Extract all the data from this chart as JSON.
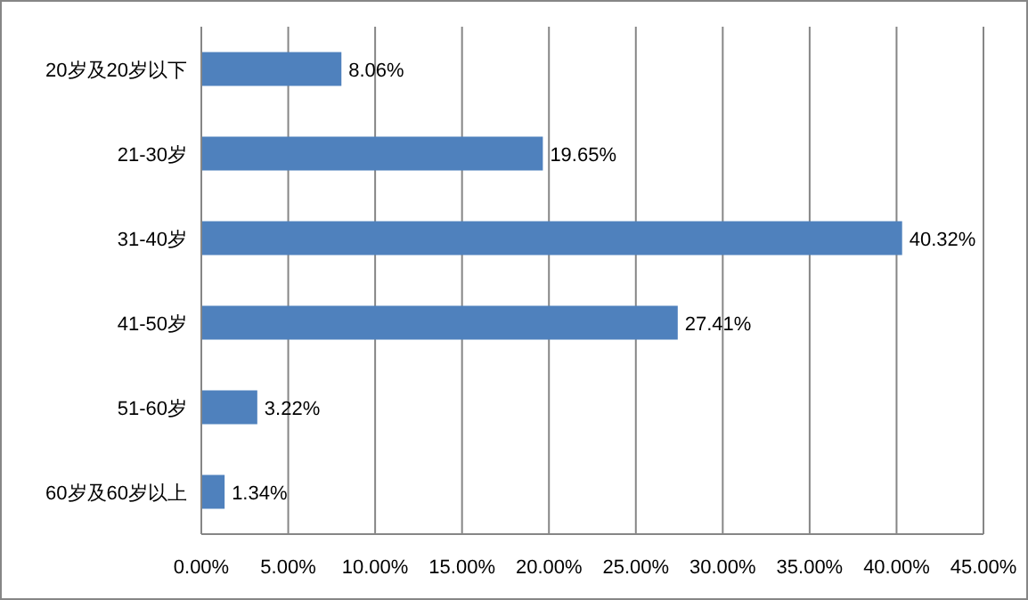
{
  "chart_data": {
    "type": "bar",
    "orientation": "horizontal",
    "categories": [
      "20岁及20岁以下",
      "21-30岁",
      "31-40岁",
      "41-50岁",
      "51-60岁",
      "60岁及60岁以上"
    ],
    "series": [
      {
        "color": "#4f81bd",
        "values": [
          8.06,
          19.65,
          40.32,
          27.41,
          3.22,
          1.34
        ],
        "value_labels": [
          "8.06%",
          "19.65%",
          "40.32%",
          "27.41%",
          "3.22%",
          "1.34%"
        ]
      }
    ],
    "xlim": [
      0,
      45
    ],
    "xticks": [
      {
        "value": 0,
        "label": "0.00%"
      },
      {
        "value": 5,
        "label": "5.00%"
      },
      {
        "value": 10,
        "label": "10.00%"
      },
      {
        "value": 15,
        "label": "15.00%"
      },
      {
        "value": 20,
        "label": "20.00%"
      },
      {
        "value": 25,
        "label": "25.00%"
      },
      {
        "value": 30,
        "label": "30.00%"
      },
      {
        "value": 35,
        "label": "35.00%"
      },
      {
        "value": 40,
        "label": "40.00%"
      },
      {
        "value": 45,
        "label": "45.00%"
      }
    ],
    "grid": "x"
  }
}
